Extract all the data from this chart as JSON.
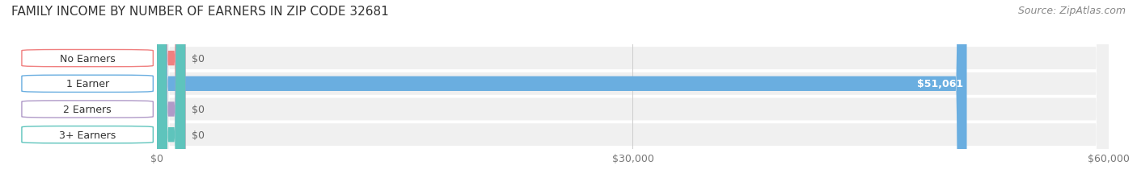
{
  "title": "FAMILY INCOME BY NUMBER OF EARNERS IN ZIP CODE 32681",
  "source": "Source: ZipAtlas.com",
  "categories": [
    "No Earners",
    "1 Earner",
    "2 Earners",
    "3+ Earners"
  ],
  "values": [
    0,
    51061,
    0,
    0
  ],
  "bar_colors": [
    "#f08080",
    "#6aaee0",
    "#b09ac8",
    "#5ec4bc"
  ],
  "row_bg_colors": [
    "#f0f0f0",
    "#f0f0f0",
    "#f0f0f0",
    "#f0f0f0"
  ],
  "xlim": [
    0,
    60000
  ],
  "xticks": [
    0,
    30000,
    60000
  ],
  "xticklabels": [
    "$0",
    "$30,000",
    "$60,000"
  ],
  "value_labels": [
    "$0",
    "$51,061",
    "$0",
    "$0"
  ],
  "background_color": "#ffffff",
  "bar_height": 0.58,
  "title_fontsize": 11,
  "source_fontsize": 9,
  "label_fontsize": 9,
  "value_fontsize": 9
}
